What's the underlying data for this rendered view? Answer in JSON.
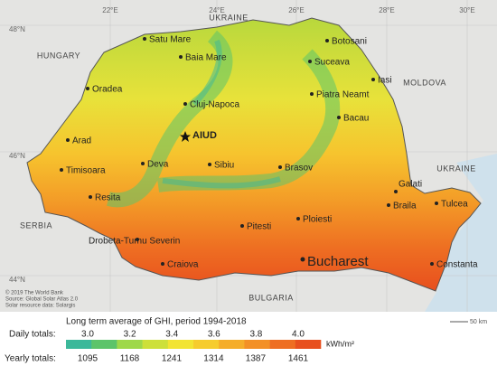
{
  "graticule": [
    "22°E",
    "24°E",
    "26°E",
    "28°E",
    "30°E",
    "48°N",
    "46°N",
    "44°N"
  ],
  "countries": [
    "UKRAINE",
    "HUNGARY",
    "MOLDOVA",
    "UKRAINE",
    "SERBIA",
    "BULGARIA"
  ],
  "cities": [
    "Satu Mare",
    "Baia Mare",
    "Botosani",
    "Suceava",
    "Iasi",
    "Oradea",
    "Cluj-Napoca",
    "Piatra Neamt",
    "Bacau",
    "Arad",
    "Timisoara",
    "Deva",
    "Sibiu",
    "Brasov",
    "Galati",
    "Braila",
    "Tulcea",
    "Resita",
    "Pitesti",
    "Ploiesti",
    "Drobeta-Turnu Severin",
    "Craiova",
    "Constanta"
  ],
  "highlight": "AIUD",
  "capital": "Bucharest",
  "credits": [
    "© 2019 The World Bank",
    "Source: Global Solar Atlas 2.0",
    "Solar resource data: Solargis"
  ],
  "scale": "50 km",
  "legend": {
    "title": "Long term average of GHI, period 1994-2018",
    "daily_label": "Daily totals:",
    "daily": [
      {
        "value": 3,
        "label": "3.0"
      },
      3.2,
      3.4,
      3.6,
      3.8,
      {
        "value": 4,
        "label": "4.0"
      }
    ],
    "yearly_label": "Yearly totals:",
    "yearly": [
      1095,
      1168,
      1241,
      1314,
      1387,
      1461
    ],
    "unit": "kWh/m²",
    "colors": [
      "#3cb89a",
      "#5cc46a",
      "#9ed84a",
      "#cde03a",
      "#f2e433",
      "#f6cc2e",
      "#f5ad2a",
      "#f39026",
      "#ee6e22",
      "#e8501e"
    ]
  }
}
